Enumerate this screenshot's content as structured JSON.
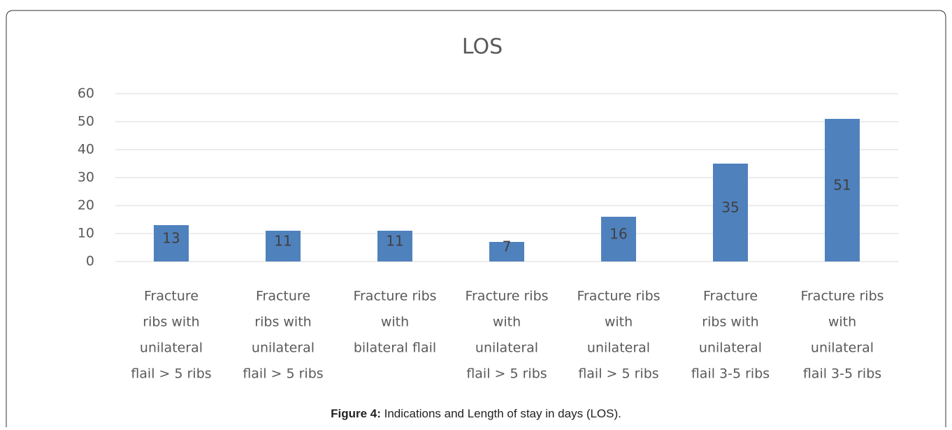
{
  "chart_data": {
    "type": "bar",
    "title": "LOS",
    "categories": [
      [
        "Fracture",
        "ribs with",
        "unilateral",
        "flail > 5 ribs"
      ],
      [
        "Fracture",
        "ribs with",
        "unilateral",
        "flail > 5 ribs"
      ],
      [
        "Fracture ribs",
        "with",
        "bilateral flail"
      ],
      [
        "Fracture ribs",
        "with",
        "unilateral",
        "flail > 5 ribs"
      ],
      [
        "Fracture ribs",
        "with",
        "unilateral",
        "flail > 5 ribs"
      ],
      [
        "Fracture",
        "ribs with",
        "unilateral",
        "flail 3-5 ribs"
      ],
      [
        "Fracture ribs",
        "with",
        "unilateral",
        "flail 3-5 ribs"
      ]
    ],
    "values": [
      13,
      11,
      11,
      7,
      16,
      35,
      51
    ],
    "color": "#4f81bd",
    "ylim": [
      0,
      60
    ],
    "yticks": [
      0,
      10,
      20,
      30,
      40,
      50,
      60
    ],
    "grid": true
  },
  "caption": {
    "label": "Figure 4:",
    "text": "Indications and Length of stay in days (LOS)."
  }
}
